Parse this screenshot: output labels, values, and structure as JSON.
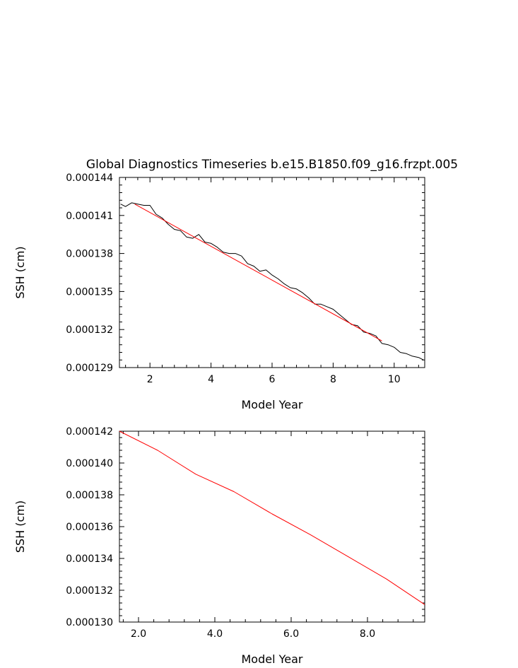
{
  "title": "Global Diagnostics Timeseries b.e15.B1850.f09_g16.frzpt.005",
  "colors": {
    "monthly": "#000000",
    "annual": "#ff0000",
    "frame": "#000000"
  },
  "chart_data": [
    {
      "type": "line",
      "title": "Global Diagnostics Timeseries b.e15.B1850.f09_g16.frzpt.005",
      "xlabel": "Model Year",
      "ylabel": "SSH (cm)",
      "xlim": [
        1.0,
        11.0
      ],
      "ylim": [
        0.000129,
        0.000144
      ],
      "x_ticks": [
        2,
        4,
        6,
        8,
        10
      ],
      "x_tick_labels": [
        "2",
        "4",
        "6",
        "8",
        "10"
      ],
      "y_ticks": [
        0.000129,
        0.000132,
        0.000135,
        0.000138,
        0.000141,
        0.000144
      ],
      "y_tick_labels": [
        "0.000129",
        "0.000132",
        "0.000135",
        "0.000138",
        "0.000141",
        "0.000144"
      ],
      "grid": false,
      "series": [
        {
          "color": "#000000",
          "x": [
            1.04,
            1.2,
            1.4,
            1.6,
            1.8,
            2.0,
            2.2,
            2.4,
            2.6,
            2.8,
            3.0,
            3.2,
            3.4,
            3.6,
            3.8,
            4.0,
            4.2,
            4.4,
            4.6,
            4.8,
            5.0,
            5.2,
            5.4,
            5.6,
            5.8,
            6.0,
            6.2,
            6.4,
            6.6,
            6.8,
            7.0,
            7.2,
            7.4,
            7.6,
            7.8,
            8.0,
            8.2,
            8.4,
            8.6,
            8.8,
            9.0,
            9.2,
            9.4,
            9.6,
            9.8,
            10.0,
            10.2,
            10.4,
            10.6,
            10.8,
            10.96
          ],
          "y": [
            0.0001419,
            0.0001417,
            0.000142,
            0.0001419,
            0.0001418,
            0.0001418,
            0.0001411,
            0.0001408,
            0.0001403,
            0.0001399,
            0.0001398,
            0.0001393,
            0.0001392,
            0.0001395,
            0.0001389,
            0.0001388,
            0.0001385,
            0.0001381,
            0.000138,
            0.000138,
            0.0001378,
            0.0001372,
            0.000137,
            0.0001366,
            0.0001367,
            0.0001363,
            0.000136,
            0.0001356,
            0.0001353,
            0.0001352,
            0.0001349,
            0.0001345,
            0.000134,
            0.000134,
            0.0001338,
            0.0001336,
            0.0001332,
            0.0001328,
            0.0001324,
            0.0001323,
            0.0001318,
            0.0001317,
            0.0001315,
            0.0001309,
            0.0001308,
            0.0001306,
            0.0001302,
            0.0001301,
            0.0001299,
            0.0001298,
            0.0001296
          ]
        },
        {
          "color": "#ff0000",
          "x": [
            1.5,
            9.6
          ],
          "y": [
            0.0001419,
            0.0001311
          ]
        }
      ]
    },
    {
      "type": "line",
      "xlabel": "Model Year",
      "ylabel": "SSH (cm)",
      "xlim": [
        1.5,
        9.5
      ],
      "ylim": [
        0.00013,
        0.000142
      ],
      "x_ticks": [
        2.0,
        4.0,
        6.0,
        8.0
      ],
      "x_tick_labels": [
        "2.0",
        "4.0",
        "6.0",
        "8.0"
      ],
      "y_ticks": [
        0.00013,
        0.000132,
        0.000134,
        0.000136,
        0.000138,
        0.00014,
        0.000142
      ],
      "y_tick_labels": [
        "0.000130",
        "0.000132",
        "0.000134",
        "0.000136",
        "0.000138",
        "0.000140",
        "0.000142"
      ],
      "grid": false,
      "series": [
        {
          "color": "#ff0000",
          "x": [
            1.5,
            2.5,
            3.5,
            4.5,
            5.5,
            6.5,
            7.5,
            8.5,
            9.5
          ],
          "y": [
            0.000142,
            0.0001408,
            0.0001393,
            0.0001382,
            0.0001368,
            0.0001355,
            0.0001341,
            0.0001327,
            0.0001311
          ]
        }
      ]
    }
  ]
}
